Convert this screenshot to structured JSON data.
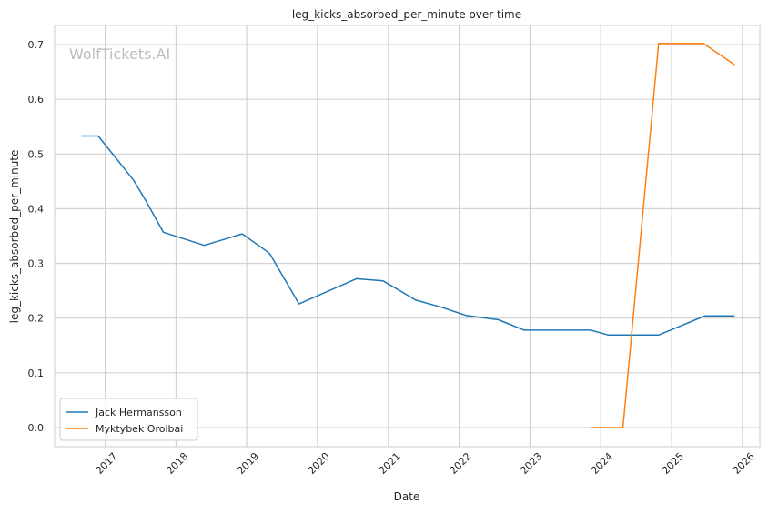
{
  "chart_data": {
    "type": "line",
    "title": "leg_kicks_absorbed_per_minute over time",
    "xlabel": "Date",
    "ylabel": "leg_kicks_absorbed_per_minute",
    "watermark": "WolfTickets.AI",
    "x_ticks": [
      "2017",
      "2018",
      "2019",
      "2020",
      "2021",
      "2022",
      "2023",
      "2024",
      "2025",
      "2026"
    ],
    "y_ticks": [
      "0.0",
      "0.1",
      "0.2",
      "0.3",
      "0.4",
      "0.5",
      "0.6",
      "0.7"
    ],
    "xlim": [
      "2016-04-15",
      "2026-04-01"
    ],
    "ylim": [
      -0.035,
      0.735
    ],
    "grid": true,
    "legend_position": "lower-left",
    "series": [
      {
        "name": "Jack Hermansson",
        "color": "#1f77b4",
        "points": [
          [
            "2016-09-01",
            0.533
          ],
          [
            "2016-11-26",
            0.533
          ],
          [
            "2017-05-28",
            0.452
          ],
          [
            "2017-08-01",
            0.413
          ],
          [
            "2017-10-28",
            0.357
          ],
          [
            "2018-05-27",
            0.333
          ],
          [
            "2018-12-09",
            0.354
          ],
          [
            "2019-04-15",
            0.322
          ],
          [
            "2019-05-01",
            0.317
          ],
          [
            "2019-09-28",
            0.226
          ],
          [
            "2020-07-20",
            0.272
          ],
          [
            "2020-12-05",
            0.268
          ],
          [
            "2021-05-22",
            0.233
          ],
          [
            "2021-10-01",
            0.22
          ],
          [
            "2022-02-05",
            0.205
          ],
          [
            "2022-07-23",
            0.197
          ],
          [
            "2022-12-03",
            0.178
          ],
          [
            "2023-11-10",
            0.178
          ],
          [
            "2024-02-10",
            0.169
          ],
          [
            "2024-10-26",
            0.169
          ],
          [
            "2025-06-21",
            0.204
          ],
          [
            "2025-11-22",
            0.204
          ]
        ]
      },
      {
        "name": "Myktybek Orolbai",
        "color": "#ff7f0e",
        "points": [
          [
            "2023-11-11",
            0.0
          ],
          [
            "2024-04-25",
            0.0
          ],
          [
            "2024-10-26",
            0.702
          ],
          [
            "2025-06-14",
            0.702
          ],
          [
            "2025-11-22",
            0.663
          ]
        ]
      }
    ]
  }
}
